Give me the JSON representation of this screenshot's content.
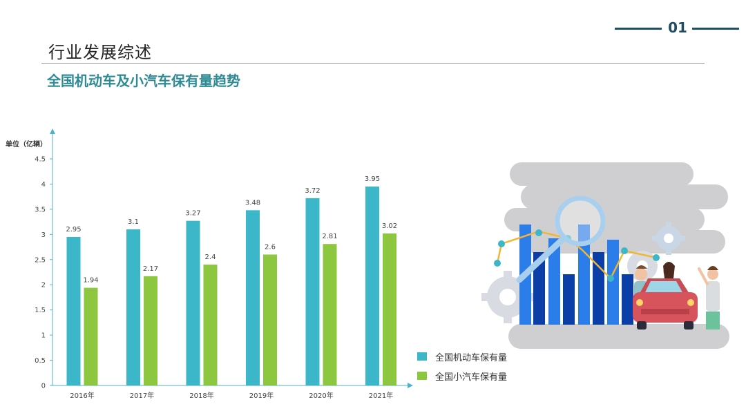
{
  "page_number": "01",
  "section_title": "行业发展综述",
  "subtitle": "全国机动车及小汽车保有量趋势",
  "colors": {
    "motor_vehicles": "#3bb7c9",
    "cars": "#8dc63f",
    "title_dark": "#1f4e63",
    "subtitle_teal": "#2e8b95"
  },
  "chart_data": {
    "type": "bar",
    "title": "",
    "xlabel": "",
    "ylabel": "单位（亿辆）",
    "categories": [
      "2016年",
      "2017年",
      "2018年",
      "2019年",
      "2020年",
      "2021年"
    ],
    "series": [
      {
        "name": "全国机动车保有量",
        "values": [
          2.95,
          3.1,
          3.27,
          3.48,
          3.72,
          3.95
        ]
      },
      {
        "name": "全国小汽车保有量",
        "values": [
          1.94,
          2.17,
          2.4,
          2.6,
          2.81,
          3.02
        ]
      }
    ],
    "ylim": [
      0,
      4.5
    ],
    "yticks": [
      0,
      0.5,
      1,
      1.5,
      2,
      2.5,
      3,
      3.5,
      4,
      4.5
    ],
    "grid": false,
    "legend_position": "bottom-right",
    "data_labels": true
  },
  "illustration": {
    "icons": [
      "gear-icon",
      "magnifier-icon",
      "car-icon",
      "people-icon",
      "line-chart-icon"
    ]
  }
}
